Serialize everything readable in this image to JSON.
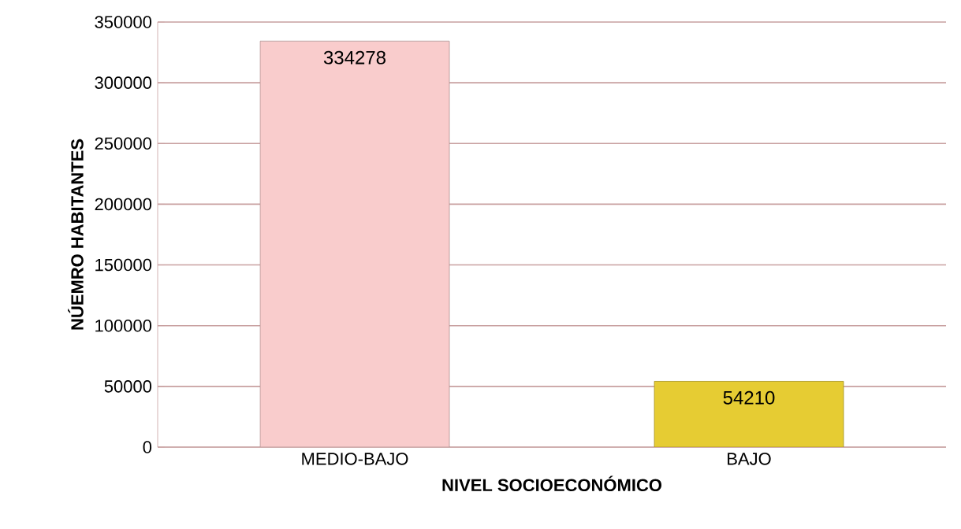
{
  "chart_data": {
    "type": "bar",
    "xlabel": "NIVEL SOCIOECONÓMICO",
    "ylabel": "NÚEMRO HABITANTES",
    "categories": [
      "MEDIO-BAJO",
      "BAJO"
    ],
    "values": [
      334278,
      54210
    ],
    "colors": [
      "#f9cccc",
      "#e6cc33"
    ],
    "ylim": [
      0,
      350000
    ],
    "yticks": [
      0,
      50000,
      100000,
      150000,
      200000,
      250000,
      300000,
      350000
    ],
    "grid": "y",
    "data_labels": true
  }
}
